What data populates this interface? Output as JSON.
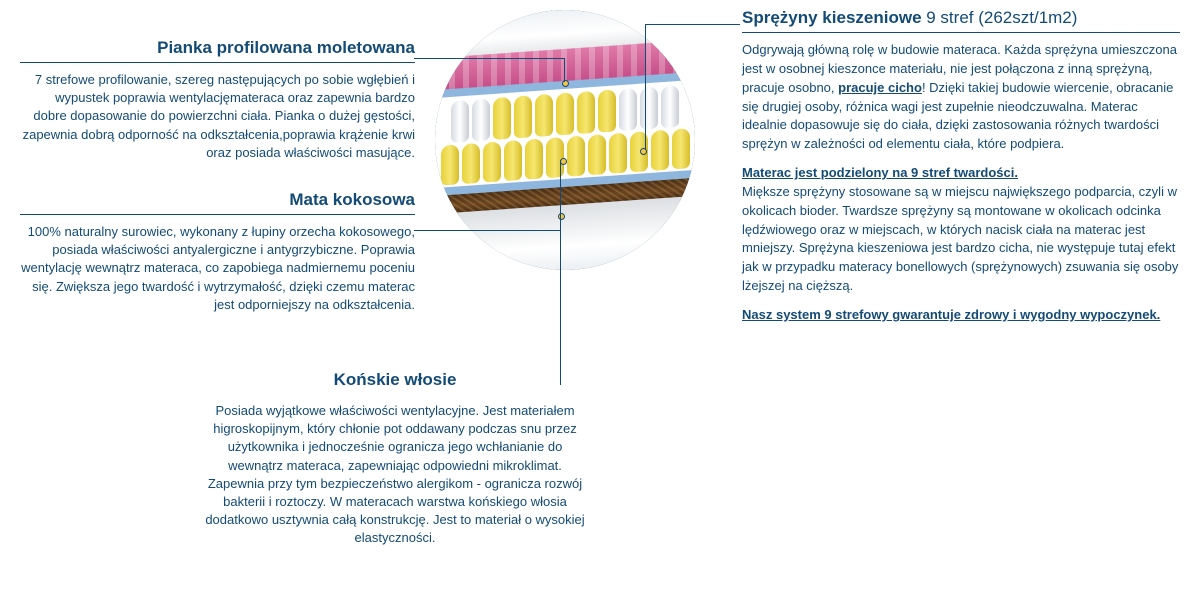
{
  "left": {
    "foam": {
      "title": "Pianka profilowana moletowana",
      "body": "7 strefowe profilowanie, szereg następujących po sobie wgłębień i wypustek poprawia wentylacjęmateraca oraz zapewnia bardzo dobre dopasowanie do powierzchni ciała. Pianka o dużej gęstości, zapewnia dobrą odporność na odkształcenia,poprawia krążenie krwi oraz posiada właściwości masujące."
    },
    "coco": {
      "title": "Mata kokosowa",
      "body": "100% naturalny surowiec, wykonany z łupiny orzecha kokosowego, posiada właściwości antyalergiczne i antygrzybiczne. Poprawia wentylację wewnątrz materaca, co zapobiega nadmiernemu poceniu się. Zwiększa jego twardość i wytrzymałość, dzięki czemu materac jest odporniejszy na odkształcenia."
    }
  },
  "bottom": {
    "hair": {
      "title": "Końskie włosie",
      "body": "Posiada wyjątkowe właściwości wentylacyjne. Jest materiałem higroskopijnym, który chłonie pot oddawany podczas snu przez użytkownika i jednocześnie ogranicza jego wchłanianie do wewnątrz materaca, zapewniając odpowiedni mikroklimat. Zapewnia przy tym bezpieczeństwo alergikom - ogranicza rozwój bakterii i roztoczy. W materacach warstwa końskiego włosia dodatkowo usztywnia całą konstrukcję. Jest to materiał o wysokiej elastyczności."
    }
  },
  "right": {
    "title_bold": "Sprężyny kieszeniowe",
    "title_light": " 9 stref (262szt/1m2)",
    "p1a": "Odgrywają główną rolę w budowie materaca. Każda sprężyna umieszczona jest w osobnej kieszonce materiału, nie jest połączona z inną sprężyną, pracuje osobno, ",
    "p1b": "pracuje cicho",
    "p1c": "! Dzięki takiej budowie wiercenie, obracanie się drugiej osoby, różnica wagi jest zupełnie nieodczuwalna. Materac idealnie dopasowuje się do ciała, dzięki zastosowania różnych twardości sprężyn w zależności od elementu ciała, które podpiera.",
    "p2_title": "Materac jest podzielony na 9 stref twardości.",
    "p2": "Miększe sprężyny stosowane są w miejscu największego podparcia, czyli w okolicach bioder. Twardsze sprężyny są montowane w okolicach odcinka lędźwiowego oraz w miejscach, w których nacisk ciała na materac jest mniejszy. Sprężyna kieszeniowa jest bardzo cicha, nie występuje tutaj efekt jak w przypadku materacy bonellowych (sprężynowych) zsuwania się osoby lżejszej na cięższą.",
    "p3": "Nasz system 9 strefowy gwarantuje zdrowy i wygodny wypoczynek."
  },
  "diagram": {
    "colors": {
      "pink": "#c44d88",
      "blue_layer": "#8fb6dd",
      "spring_yellow": "#e8d13a",
      "spring_white": "#ffffff",
      "coco": "#4a2f15",
      "outer": "#ffffff",
      "bg_circle": "#0d3a5c",
      "marker_fill": "#f5c542",
      "line": "#134b76"
    },
    "spring_row1": [
      "w",
      "w",
      "y",
      "y",
      "y",
      "y",
      "y",
      "y",
      "w",
      "w",
      "w"
    ],
    "spring_row2": [
      "y",
      "y",
      "y",
      "y",
      "y",
      "y",
      "y",
      "y",
      "y",
      "y",
      "y",
      "y"
    ]
  }
}
